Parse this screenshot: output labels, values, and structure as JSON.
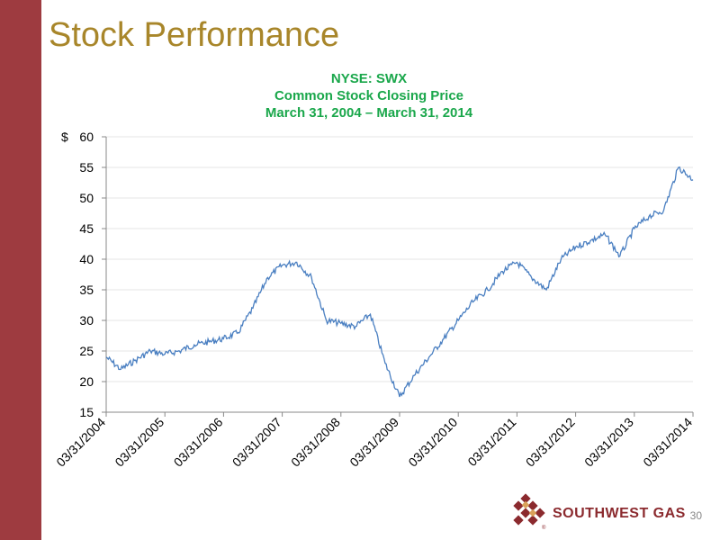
{
  "slide": {
    "title": "Stock Performance",
    "page_number": "30"
  },
  "logo": {
    "text": "SOUTHWEST GAS",
    "reg": "®"
  },
  "colors": {
    "side_bar": "#9e3b40",
    "title": "#a8862a",
    "chart_header": "#1aa74b",
    "line": "#4a7fc1"
  },
  "chart_data": {
    "type": "line",
    "title": "NYSE:  SWX",
    "subtitle": "Common Stock Closing Price",
    "date_range": "March 31, 2004 – March 31, 2014",
    "y_currency_label": "$",
    "ylim": [
      15,
      60
    ],
    "y_ticks": [
      "60",
      "55",
      "50",
      "45",
      "40",
      "35",
      "30",
      "25",
      "20",
      "15"
    ],
    "x_ticks": [
      "03/31/2004",
      "03/31/2005",
      "03/31/2006",
      "03/31/2007",
      "03/31/2008",
      "03/31/2009",
      "03/31/2010",
      "03/31/2011",
      "03/31/2012",
      "03/31/2013",
      "03/31/2014"
    ],
    "grid": true,
    "series": [
      {
        "x": [
          "2004-03-31",
          "2004-06-30",
          "2004-09-30",
          "2004-12-31",
          "2005-03-31",
          "2005-06-30",
          "2005-09-30",
          "2005-12-31",
          "2006-03-31",
          "2006-06-30",
          "2006-09-30",
          "2006-12-31",
          "2007-03-31",
          "2007-06-30",
          "2007-09-30",
          "2007-12-31",
          "2008-03-31",
          "2008-06-30",
          "2008-09-30",
          "2008-12-31",
          "2009-03-31",
          "2009-06-30",
          "2009-09-30",
          "2009-12-31",
          "2010-03-31",
          "2010-06-30",
          "2010-09-30",
          "2010-12-31",
          "2011-03-31",
          "2011-06-30",
          "2011-09-30",
          "2011-12-31",
          "2012-03-31",
          "2012-06-30",
          "2012-09-30",
          "2012-12-31",
          "2013-03-31",
          "2013-06-30",
          "2013-09-30",
          "2013-12-31",
          "2014-03-31"
        ],
        "values": [
          24.0,
          22.0,
          23.5,
          25.0,
          24.5,
          25.0,
          26.0,
          26.5,
          27.0,
          28.0,
          32.0,
          37.0,
          39.0,
          39.5,
          37.0,
          30.0,
          29.5,
          29.0,
          31.0,
          23.0,
          17.5,
          21.0,
          24.0,
          27.0,
          30.0,
          33.0,
          35.0,
          38.0,
          39.5,
          37.0,
          35.0,
          40.0,
          42.0,
          43.0,
          44.0,
          40.5,
          45.0,
          47.0,
          48.0,
          55.0,
          53.0
        ]
      }
    ]
  }
}
